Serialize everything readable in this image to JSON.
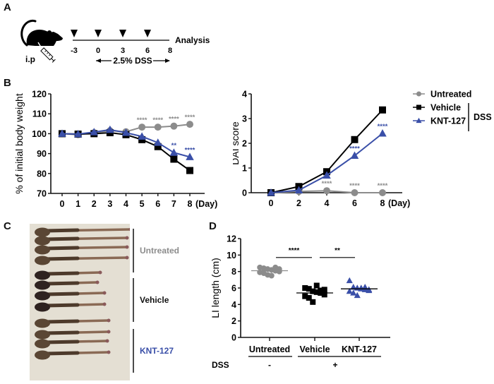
{
  "colors": {
    "untreated": "#8c8c8c",
    "vehicle": "#000000",
    "knt127": "#3a4fa8",
    "axis": "#111111",
    "photo_bg": "#e4dfd3",
    "tissue": "#5a4634"
  },
  "panel_a": {
    "letter": "A",
    "route_label": "i.p",
    "timeline_days": [
      "-3",
      "0",
      "3",
      "6",
      "8"
    ],
    "injection_days": [
      "-3",
      "0",
      "3",
      "6"
    ],
    "endpoint_label": "Analysis",
    "treatment_label": "2.5% DSS",
    "icons": [
      "mouse-icon",
      "syringe-icon",
      "injection-arrow-icon"
    ]
  },
  "panel_c": {
    "letter": "C",
    "groups": [
      {
        "label": "Untreated",
        "count": 4
      },
      {
        "label": "Vehicle",
        "count": 4
      },
      {
        "label": "KNT-127",
        "count": 4
      }
    ]
  },
  "chart_data": [
    {
      "id": "B-left",
      "panel": "B",
      "type": "line",
      "title": "",
      "xlabel": "(Day)",
      "ylabel": "% of initial body weight",
      "x": [
        0,
        1,
        2,
        3,
        4,
        5,
        6,
        7,
        8
      ],
      "x_ticks": [
        "0",
        "1",
        "2",
        "3",
        "4",
        "5",
        "6",
        "7",
        "8"
      ],
      "y_ticks": [
        "70",
        "80",
        "90",
        "100",
        "110",
        "120"
      ],
      "xlim": [
        0,
        8
      ],
      "ylim": [
        70,
        120
      ],
      "grid": false,
      "series": [
        {
          "name": "Untreated",
          "marker": "circle",
          "values": [
            100,
            99.5,
            100.5,
            101.5,
            101,
            103.3,
            103.3,
            103.8,
            104.7
          ],
          "annotations": [
            null,
            null,
            null,
            null,
            null,
            "****",
            "****",
            "****",
            "****"
          ]
        },
        {
          "name": "Vehicle",
          "marker": "square",
          "values": [
            100,
            99.8,
            100,
            100.5,
            99.5,
            97,
            93.5,
            87.2,
            81.5
          ],
          "annotations": [
            null,
            null,
            null,
            null,
            null,
            null,
            null,
            null,
            null
          ]
        },
        {
          "name": "KNT-127",
          "marker": "triangle",
          "values": [
            100,
            99.8,
            100.8,
            102,
            100.5,
            98.6,
            95.5,
            90.5,
            88.3
          ],
          "annotations": [
            null,
            null,
            null,
            null,
            null,
            null,
            null,
            "**",
            "****"
          ]
        }
      ]
    },
    {
      "id": "B-right",
      "panel": "B",
      "type": "line",
      "title": "",
      "xlabel": "(Day)",
      "ylabel": "DAI score",
      "x": [
        0,
        2,
        4,
        6,
        8
      ],
      "x_ticks": [
        "0",
        "2",
        "4",
        "6",
        "8"
      ],
      "y_ticks": [
        "0",
        "1",
        "2",
        "3",
        "4"
      ],
      "xlim": [
        0,
        8
      ],
      "ylim": [
        0,
        4
      ],
      "grid": false,
      "series": [
        {
          "name": "Untreated",
          "marker": "circle",
          "values": [
            0,
            0.05,
            0.08,
            0,
            0
          ],
          "annotations": [
            null,
            null,
            "****",
            "****",
            "****"
          ]
        },
        {
          "name": "Vehicle",
          "marker": "square",
          "values": [
            0,
            0.25,
            0.85,
            2.15,
            3.35
          ],
          "annotations": [
            null,
            null,
            null,
            null,
            null
          ]
        },
        {
          "name": "KNT-127",
          "marker": "triangle",
          "values": [
            0,
            0.1,
            0.7,
            1.5,
            2.4
          ],
          "annotations": [
            null,
            null,
            null,
            "****",
            "****"
          ]
        }
      ],
      "legend": {
        "placement": "right",
        "entries": [
          "Untreated",
          "Vehicle",
          "KNT-127"
        ],
        "bracket_label": "DSS"
      }
    },
    {
      "id": "D",
      "panel": "D",
      "type": "scatter",
      "title": "",
      "xlabel": "",
      "ylabel": "LI length (cm)",
      "categories": [
        "Untreated",
        "Vehicle",
        "KNT-127"
      ],
      "y_ticks": [
        "0",
        "2",
        "4",
        "6",
        "8",
        "10",
        "12"
      ],
      "ylim": [
        0,
        12
      ],
      "grid": false,
      "series": [
        {
          "name": "Untreated",
          "marker": "circle",
          "mean": 8.1,
          "values": [
            8.5,
            8.4,
            8.3,
            8.2,
            8.1,
            8.0,
            7.9,
            7.8,
            7.6,
            7.5,
            8.5,
            8.3
          ]
        },
        {
          "name": "Vehicle",
          "marker": "square",
          "mean": 5.4,
          "values": [
            6.0,
            5.9,
            5.6,
            5.5,
            5.4,
            5.2,
            5.0,
            4.8,
            4.3,
            6.3,
            5.7,
            5.8
          ]
        },
        {
          "name": "KNT-127",
          "marker": "triangle",
          "mean": 5.9,
          "values": [
            6.9,
            6.1,
            6.0,
            5.9,
            5.8,
            5.7,
            5.6,
            5.4,
            5.1,
            6.0,
            6.1,
            5.8
          ]
        }
      ],
      "significance": [
        {
          "between": [
            "Untreated",
            "Vehicle"
          ],
          "label": "****"
        },
        {
          "between": [
            "Vehicle",
            "KNT-127"
          ],
          "label": "**"
        }
      ],
      "dss_row": {
        "label": "DSS",
        "values": [
          "-",
          "+"
        ]
      }
    }
  ],
  "panel_b": {
    "letter": "B"
  },
  "panel_d": {
    "letter": "D"
  }
}
